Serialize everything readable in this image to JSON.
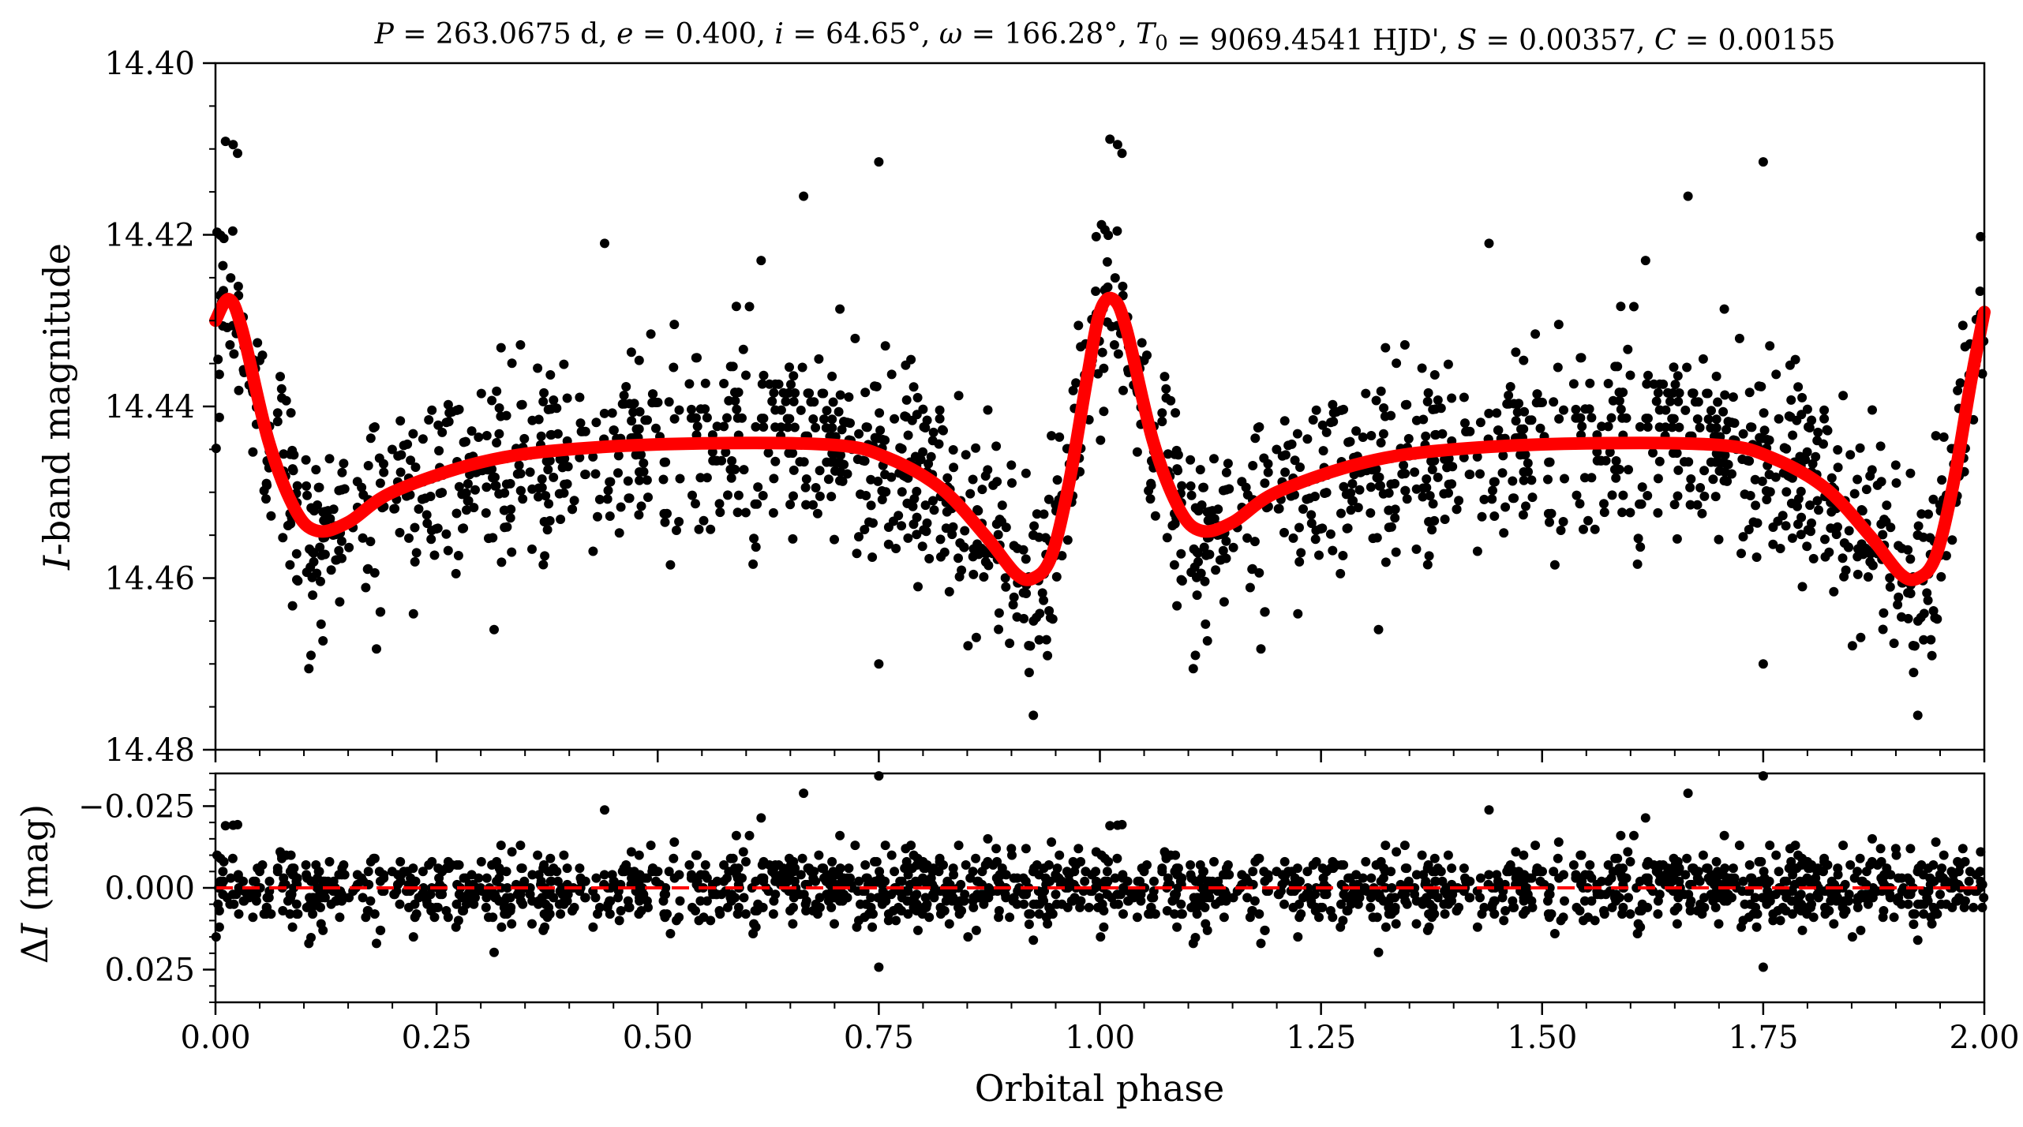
{
  "chart_data": [
    {
      "type": "scatter",
      "panel": "light curve",
      "title": "P = 263.0675 d, e = 0.400, i = 64.65°, ω = 166.28°, T0 = 9069.4541 HJD', S = 0.00357, C = 0.00155",
      "xlabel": "",
      "ylabel": "I-band magnitude",
      "xlim": [
        0.0,
        2.0
      ],
      "ylim": [
        14.48,
        14.4
      ],
      "y_inverted": true,
      "grid": false,
      "y_ticks": [
        "14.40",
        "14.42",
        "14.44",
        "14.46",
        "14.48"
      ],
      "model": {
        "period_days": 263.0675,
        "eccentricity": 0.4,
        "inclination_deg": 64.65,
        "omega_deg": 166.28,
        "T0": "9069.4541 HJD'",
        "S": 0.00357,
        "C": 0.00155,
        "color": "#ff0000",
        "curve_points": [
          {
            "x": 0.0,
            "y": 14.43
          },
          {
            "x": 0.015,
            "y": 14.4275
          },
          {
            "x": 0.03,
            "y": 14.431
          },
          {
            "x": 0.06,
            "y": 14.444
          },
          {
            "x": 0.09,
            "y": 14.452
          },
          {
            "x": 0.115,
            "y": 14.4545
          },
          {
            "x": 0.15,
            "y": 14.4535
          },
          {
            "x": 0.2,
            "y": 14.45
          },
          {
            "x": 0.3,
            "y": 14.4465
          },
          {
            "x": 0.4,
            "y": 14.445
          },
          {
            "x": 0.55,
            "y": 14.4443
          },
          {
            "x": 0.7,
            "y": 14.4445
          },
          {
            "x": 0.76,
            "y": 14.446
          },
          {
            "x": 0.82,
            "y": 14.4495
          },
          {
            "x": 0.87,
            "y": 14.455
          },
          {
            "x": 0.905,
            "y": 14.4595
          },
          {
            "x": 0.925,
            "y": 14.46
          },
          {
            "x": 0.945,
            "y": 14.4575
          },
          {
            "x": 0.965,
            "y": 14.449
          },
          {
            "x": 0.985,
            "y": 14.437
          },
          {
            "x": 1.0,
            "y": 14.429
          },
          {
            "x": 1.015,
            "y": 14.4275
          },
          {
            "x": 1.03,
            "y": 14.431
          },
          {
            "x": 1.06,
            "y": 14.444
          },
          {
            "x": 1.09,
            "y": 14.452
          },
          {
            "x": 1.115,
            "y": 14.4545
          },
          {
            "x": 1.15,
            "y": 14.4535
          },
          {
            "x": 1.2,
            "y": 14.45
          },
          {
            "x": 1.3,
            "y": 14.4465
          },
          {
            "x": 1.4,
            "y": 14.445
          },
          {
            "x": 1.55,
            "y": 14.4443
          },
          {
            "x": 1.7,
            "y": 14.4445
          },
          {
            "x": 1.76,
            "y": 14.446
          },
          {
            "x": 1.82,
            "y": 14.4495
          },
          {
            "x": 1.87,
            "y": 14.455
          },
          {
            "x": 1.905,
            "y": 14.4595
          },
          {
            "x": 1.925,
            "y": 14.46
          },
          {
            "x": 1.945,
            "y": 14.4575
          },
          {
            "x": 1.965,
            "y": 14.449
          },
          {
            "x": 1.985,
            "y": 14.437
          },
          {
            "x": 2.0,
            "y": 14.429
          }
        ]
      },
      "scatter": {
        "color": "#000000",
        "n_points_per_cycle": 900,
        "noise_sigma_mag": 0.0055,
        "notable_points": [
          {
            "x": 0.02,
            "y": 14.4095
          },
          {
            "x": 0.025,
            "y": 14.4105
          },
          {
            "x": 0.665,
            "y": 14.4155
          },
          {
            "x": 0.75,
            "y": 14.4115
          },
          {
            "x": 0.92,
            "y": 14.471
          },
          {
            "x": 0.75,
            "y": 14.47
          },
          {
            "x": 0.108,
            "y": 14.469
          },
          {
            "x": 0.315,
            "y": 14.466
          },
          {
            "x": 0.44,
            "y": 14.421
          },
          {
            "x": 0.617,
            "y": 14.423
          },
          {
            "x": 1.02,
            "y": 14.4095
          },
          {
            "x": 1.025,
            "y": 14.4105
          },
          {
            "x": 1.665,
            "y": 14.4155
          },
          {
            "x": 1.75,
            "y": 14.4115
          },
          {
            "x": 1.92,
            "y": 14.471
          },
          {
            "x": 1.75,
            "y": 14.47
          },
          {
            "x": 1.108,
            "y": 14.469
          },
          {
            "x": 1.315,
            "y": 14.466
          },
          {
            "x": 1.44,
            "y": 14.421
          },
          {
            "x": 1.617,
            "y": 14.423
          }
        ]
      }
    },
    {
      "type": "scatter",
      "panel": "residuals",
      "title": "",
      "xlabel": "Orbital phase",
      "ylabel": "ΔI (mag)",
      "xlim": [
        0.0,
        2.0
      ],
      "ylim": [
        0.035,
        -0.035
      ],
      "y_inverted": true,
      "grid": false,
      "x_ticks": [
        "0.00",
        "0.25",
        "0.50",
        "0.75",
        "1.00",
        "1.25",
        "1.50",
        "1.75",
        "2.00"
      ],
      "y_ticks": [
        "−0.025",
        "0.000",
        "0.025"
      ],
      "zero_line": {
        "y": 0.0,
        "style": "dashed",
        "color": "#ff0000"
      }
    }
  ]
}
